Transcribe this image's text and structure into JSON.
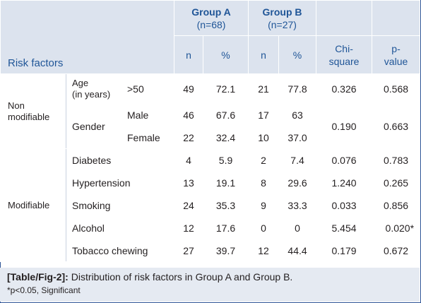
{
  "header": {
    "risk_factors": "Risk factors",
    "group_a": "Group A",
    "group_a_n": "(n=68)",
    "group_b": "Group B",
    "group_b_n": "(n=27)",
    "col_n": "n",
    "col_pct": "%",
    "col_chi_1": "Chi-",
    "col_chi_2": "square",
    "col_p_1": "p-",
    "col_p_2": "value"
  },
  "non_modifiable": {
    "label_1": "Non",
    "label_2": "modifiable",
    "age_label_1": "Age",
    "age_label_2": "(in years)",
    "age_sub": ">50",
    "age": {
      "a_n": "49",
      "a_pct": "72.1",
      "b_n": "21",
      "b_pct": "77.8",
      "chi": "0.326",
      "p": "0.568"
    },
    "gender_label": "Gender",
    "male_label": "Male",
    "male": {
      "a_n": "46",
      "a_pct": "67.6",
      "b_n": "17",
      "b_pct": "63"
    },
    "female_label": "Female",
    "female": {
      "a_n": "22",
      "a_pct": "32.4",
      "b_n": "10",
      "b_pct": "37.0"
    },
    "gender_chi": "0.190",
    "gender_p": "0.663"
  },
  "modifiable": {
    "label": "Modifiable",
    "rows": [
      {
        "factor": "Diabetes",
        "a_n": "4",
        "a_pct": "5.9",
        "b_n": "2",
        "b_pct": "7.4",
        "chi": "0.076",
        "p": "0.783"
      },
      {
        "factor": "Hypertension",
        "a_n": "13",
        "a_pct": "19.1",
        "b_n": "8",
        "b_pct": "29.6",
        "chi": "1.240",
        "p": "0.265"
      },
      {
        "factor": "Smoking",
        "a_n": "24",
        "a_pct": "35.3",
        "b_n": "9",
        "b_pct": "33.3",
        "chi": "0.033",
        "p": "0.856"
      },
      {
        "factor": "Alcohol",
        "a_n": "12",
        "a_pct": "17.6",
        "b_n": "0",
        "b_pct": "0",
        "chi": "5.454",
        "p": "0.020*"
      },
      {
        "factor": "Tobacco chewing",
        "a_n": "27",
        "a_pct": "39.7",
        "b_n": "12",
        "b_pct": "44.4",
        "chi": "0.179",
        "p": "0.672"
      }
    ]
  },
  "caption": {
    "tag": "[Table/Fig-2]:",
    "text": " Distribution of risk factors in Group A and Group B.",
    "note": "*p<0.05, Significant"
  }
}
